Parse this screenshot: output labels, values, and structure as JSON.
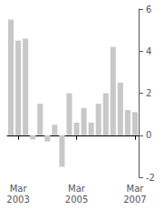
{
  "chart_data": {
    "type": "bar",
    "categories": [
      null,
      "Mar\n2003",
      null,
      null,
      null,
      null,
      null,
      null,
      null,
      "Mar\n2005",
      null,
      null,
      null,
      null,
      null,
      null,
      null,
      "Mar\n2007"
    ],
    "values": [
      5.5,
      4.5,
      4.6,
      -0.2,
      1.5,
      -0.3,
      0.5,
      -1.5,
      2.0,
      0.6,
      1.3,
      0.6,
      1.5,
      2.0,
      4.2,
      2.5,
      1.2,
      1.1
    ],
    "color": "#c8c8c8",
    "ylim": [
      -2,
      6
    ],
    "yticks": [
      -2,
      0,
      2,
      4,
      6
    ],
    "grid": false
  }
}
